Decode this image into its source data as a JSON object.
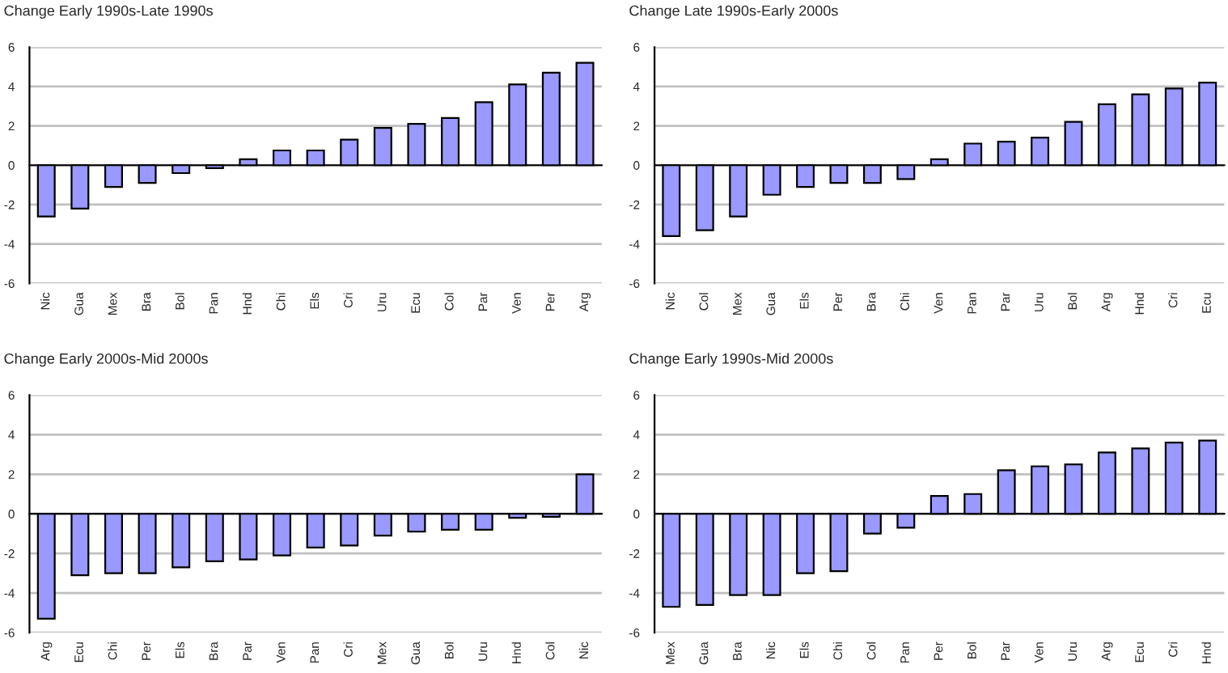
{
  "chart_data": [
    {
      "type": "bar",
      "title": "Change Early 1990s-Late 1990s",
      "categories": [
        "Nic",
        "Gua",
        "Mex",
        "Bra",
        "Bol",
        "Pan",
        "Hnd",
        "Chi",
        "Els",
        "Cri",
        "Uru",
        "Ecu",
        "Col",
        "Par",
        "Ven",
        "Per",
        "Arg"
      ],
      "values": [
        -2.6,
        -2.2,
        -1.1,
        -0.9,
        -0.4,
        -0.15,
        0.3,
        0.75,
        0.75,
        1.3,
        1.9,
        2.1,
        2.4,
        3.2,
        4.1,
        4.7,
        5.2
      ],
      "color": "#9999ff",
      "ylim": [
        -6,
        6
      ],
      "yticks": [
        -6,
        -4,
        -2,
        0,
        2,
        4,
        6
      ],
      "grid": "y"
    },
    {
      "type": "bar",
      "title": "Change Late 1990s-Early 2000s",
      "categories": [
        "Nic",
        "Col",
        "Mex",
        "Gua",
        "Els",
        "Per",
        "Bra",
        "Chi",
        "Ven",
        "Pan",
        "Par",
        "Uru",
        "Bol",
        "Arg",
        "Hnd",
        "Cri",
        "Ecu"
      ],
      "values": [
        -3.6,
        -3.3,
        -2.6,
        -1.5,
        -1.1,
        -0.9,
        -0.9,
        -0.7,
        0.3,
        1.1,
        1.2,
        1.4,
        2.2,
        3.1,
        3.6,
        3.9,
        4.2
      ],
      "color": "#9999ff",
      "ylim": [
        -6,
        6
      ],
      "yticks": [
        -6,
        -4,
        -2,
        0,
        2,
        4,
        6
      ],
      "grid": "y"
    },
    {
      "type": "bar",
      "title": "Change Early 2000s-Mid 2000s",
      "categories": [
        "Arg",
        "Ecu",
        "Chi",
        "Per",
        "Els",
        "Bra",
        "Par",
        "Ven",
        "Pan",
        "Cri",
        "Mex",
        "Gua",
        "Bol",
        "Uru",
        "Hnd",
        "Col",
        "Nic"
      ],
      "values": [
        -5.3,
        -3.1,
        -3.0,
        -3.0,
        -2.7,
        -2.4,
        -2.3,
        -2.1,
        -1.7,
        -1.6,
        -1.1,
        -0.9,
        -0.8,
        -0.8,
        -0.2,
        -0.15,
        2.0
      ],
      "color": "#9999ff",
      "ylim": [
        -6,
        6
      ],
      "yticks": [
        -6,
        -4,
        -2,
        0,
        2,
        4,
        6
      ],
      "grid": "y"
    },
    {
      "type": "bar",
      "title": "Change Early 1990s-Mid 2000s",
      "categories": [
        "Mex",
        "Gua",
        "Bra",
        "Nic",
        "Els",
        "Chi",
        "Col",
        "Pan",
        "Per",
        "Bol",
        "Par",
        "Ven",
        "Uru",
        "Arg",
        "Ecu",
        "Cri",
        "Hnd"
      ],
      "values": [
        -4.7,
        -4.6,
        -4.1,
        -4.1,
        -3.0,
        -2.9,
        -1.0,
        -0.7,
        0.9,
        1.0,
        2.2,
        2.4,
        2.5,
        3.1,
        3.3,
        3.6,
        3.7
      ],
      "color": "#9999ff",
      "ylim": [
        -6,
        6
      ],
      "yticks": [
        -6,
        -4,
        -2,
        0,
        2,
        4,
        6
      ],
      "grid": "y"
    }
  ]
}
